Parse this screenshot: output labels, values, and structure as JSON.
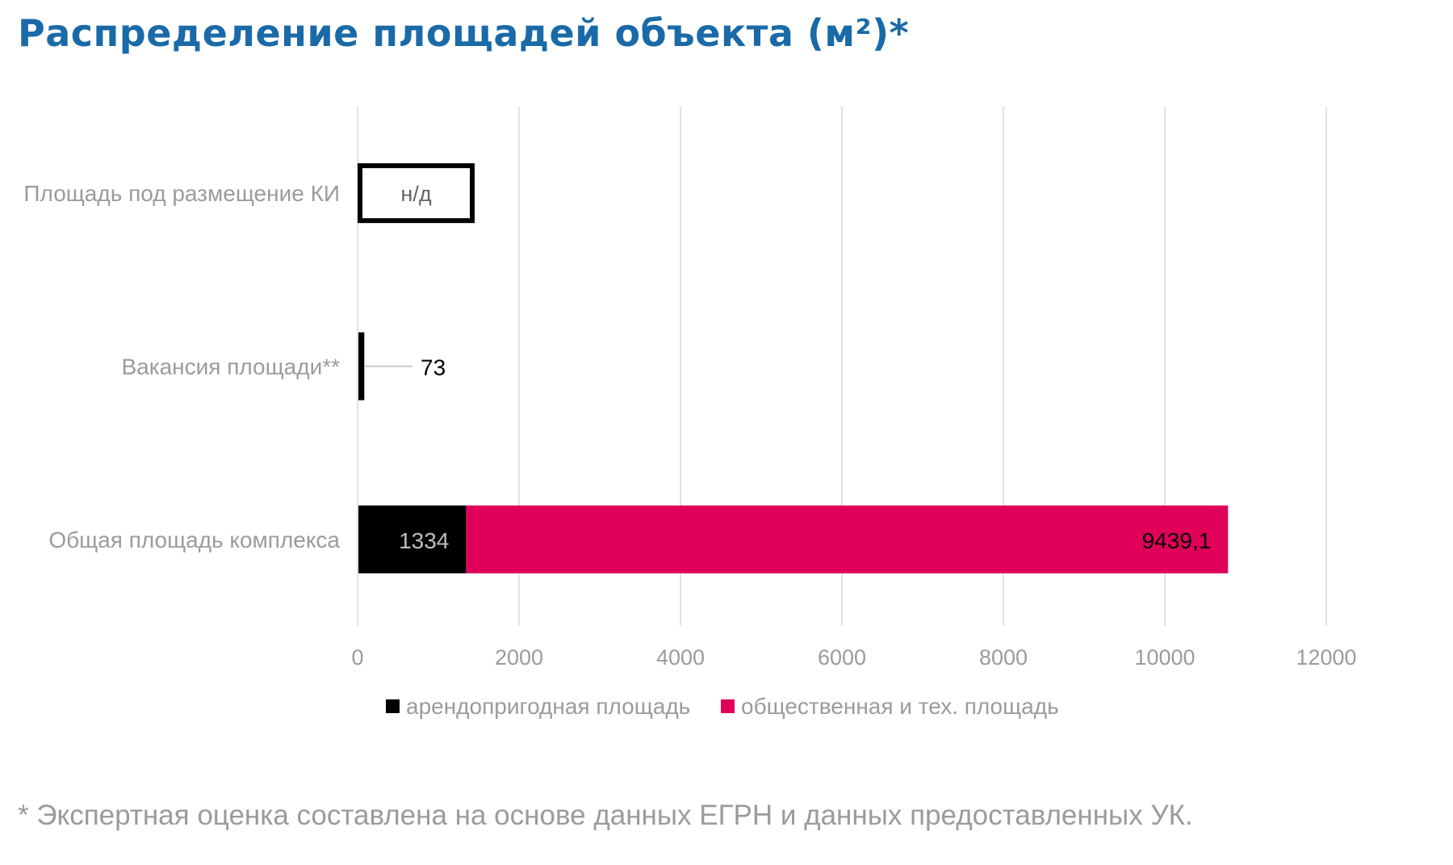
{
  "title": "Распределение площадей объекта (м²)*",
  "footnote": "* Экспертная оценка составлена на основе данных ЕГРН и данных предоставленных УК.",
  "chart_data": {
    "type": "bar",
    "orientation": "horizontal",
    "stacked": true,
    "xlim": [
      0,
      12000
    ],
    "xticks": [
      0,
      2000,
      4000,
      6000,
      8000,
      10000,
      12000
    ],
    "grid": true,
    "legend_position": "bottom",
    "categories": [
      "Площадь под размещение КИ",
      "Вакансия площади**",
      "Общая площадь комплекса"
    ],
    "series": [
      {
        "name": "арендопригодная площадь",
        "color": "#000000",
        "values": [
          null,
          73,
          1334
        ],
        "labels": [
          "",
          "73",
          "1334"
        ]
      },
      {
        "name": "общественная и тех. площадь",
        "color": "#e0005a",
        "values": [
          null,
          null,
          9439.1
        ],
        "labels": [
          "",
          "",
          "9439,1"
        ]
      }
    ],
    "na_bar": {
      "category_index": 0,
      "label": "н/д",
      "width_value": 1450
    }
  }
}
